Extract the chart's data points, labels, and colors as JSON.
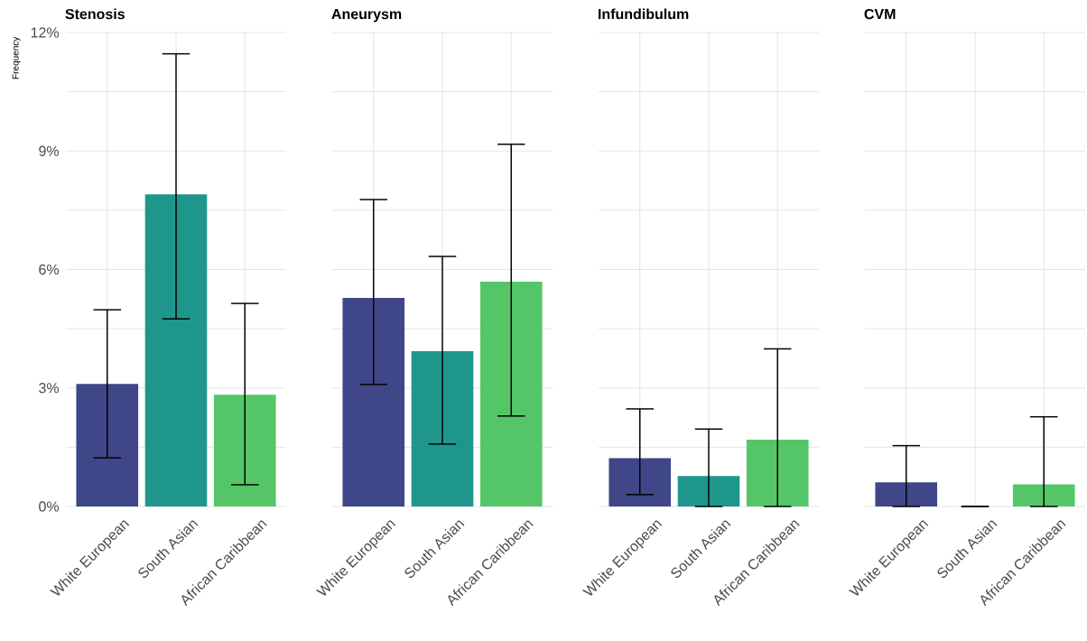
{
  "chart_data": [
    {
      "type": "bar",
      "title": "Stenosis",
      "ylabel": "Frequency",
      "categories": [
        "White European",
        "South Asian",
        "African Caribbean"
      ],
      "values": [
        3.1,
        7.9,
        2.83
      ],
      "colors": [
        "#3f4788",
        "#1f968b",
        "#55c667"
      ],
      "errors": [
        [
          1.23,
          4.98
        ],
        [
          4.75,
          11.46
        ],
        [
          0.55,
          5.14
        ]
      ],
      "ylim": [
        0,
        12
      ],
      "yticks": [
        {
          "value": 0,
          "label": "0%"
        },
        {
          "value": 1.5,
          "label": null
        },
        {
          "value": 3,
          "label": "3%"
        },
        {
          "value": 4.5,
          "label": null
        },
        {
          "value": 6,
          "label": "6%"
        },
        {
          "value": 7.5,
          "label": null
        },
        {
          "value": 9,
          "label": "9%"
        },
        {
          "value": 10.5,
          "label": null
        },
        {
          "value": 12,
          "label": "12%"
        }
      ],
      "grid": true
    },
    {
      "type": "bar",
      "title": "Aneurysm",
      "categories": [
        "White European",
        "South Asian",
        "African Caribbean"
      ],
      "values": [
        5.28,
        3.93,
        5.69
      ],
      "colors": [
        "#3f4788",
        "#1f968b",
        "#55c667"
      ],
      "errors": [
        [
          3.09,
          7.77
        ],
        [
          1.58,
          6.33
        ],
        [
          2.29,
          9.17
        ]
      ],
      "ylim": [
        0,
        12
      ],
      "yticks": [
        0,
        1.5,
        3,
        4.5,
        6,
        7.5,
        9,
        10.5,
        12
      ],
      "grid": true,
      "tick_labels": "x"
    },
    {
      "type": "bar",
      "title": "Infundibulum",
      "categories": [
        "White European",
        "South Asian",
        "African Caribbean"
      ],
      "values": [
        1.22,
        0.77,
        1.69
      ],
      "colors": [
        "#3f4788",
        "#1f968b",
        "#55c667"
      ],
      "errors": [
        [
          0.3,
          2.47
        ],
        [
          0,
          1.96
        ],
        [
          0,
          3.99
        ]
      ],
      "ylim": [
        0,
        12
      ],
      "yticks": [
        0,
        1.5,
        3,
        4.5,
        6,
        7.5,
        9,
        10.5,
        12
      ],
      "grid": true,
      "tick_labels": "x"
    },
    {
      "type": "bar",
      "title": "CVM",
      "categories": [
        "White European",
        "South Asian",
        "African Caribbean"
      ],
      "values": [
        0.61,
        0,
        0.56
      ],
      "colors": [
        "#3f4788",
        "#1f968b",
        "#55c667"
      ],
      "errors": [
        [
          0,
          1.54
        ],
        [
          0,
          0
        ],
        [
          0,
          2.27
        ]
      ],
      "ylim": [
        0,
        12
      ],
      "yticks": [
        0,
        1.5,
        3,
        4.5,
        6,
        7.5,
        9,
        10.5,
        12
      ],
      "grid": true,
      "tick_labels": "x"
    }
  ]
}
